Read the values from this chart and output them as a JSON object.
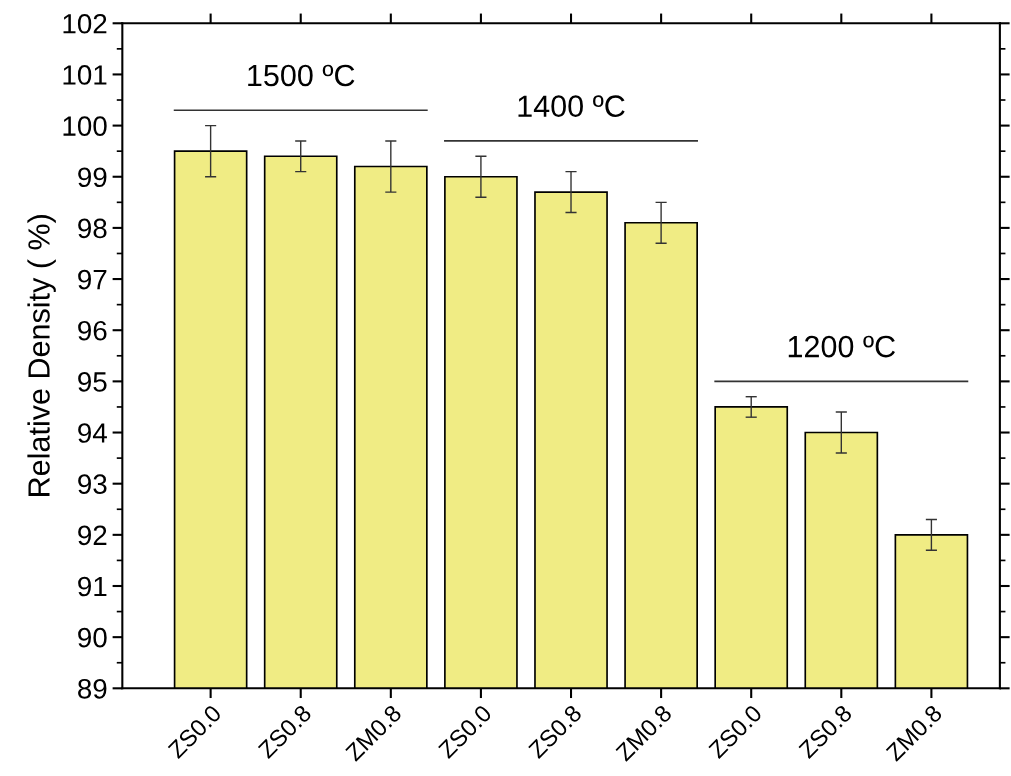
{
  "chart_data": {
    "type": "bar",
    "ylabel": "Relative Density ( %)",
    "categories": [
      "ZS0.0",
      "ZS0.8",
      "ZM0.8",
      "ZS0.0",
      "ZS0.8",
      "ZM0.8",
      "ZS0.0",
      "ZS0.8",
      "ZM0.8"
    ],
    "values": [
      99.5,
      99.4,
      99.2,
      99.0,
      98.7,
      98.1,
      94.5,
      94.0,
      92.0
    ],
    "errors": [
      0.5,
      0.3,
      0.5,
      0.4,
      0.4,
      0.4,
      0.2,
      0.4,
      0.3
    ],
    "color": "#f0ec84",
    "ylim": [
      89,
      102
    ],
    "yticks": [
      89,
      90,
      91,
      92,
      93,
      94,
      95,
      96,
      97,
      98,
      99,
      100,
      101,
      102
    ],
    "annotations": [
      "1500 ºC",
      "1400 ºC",
      "1200 ºC"
    ],
    "grid": false,
    "legend": false
  }
}
